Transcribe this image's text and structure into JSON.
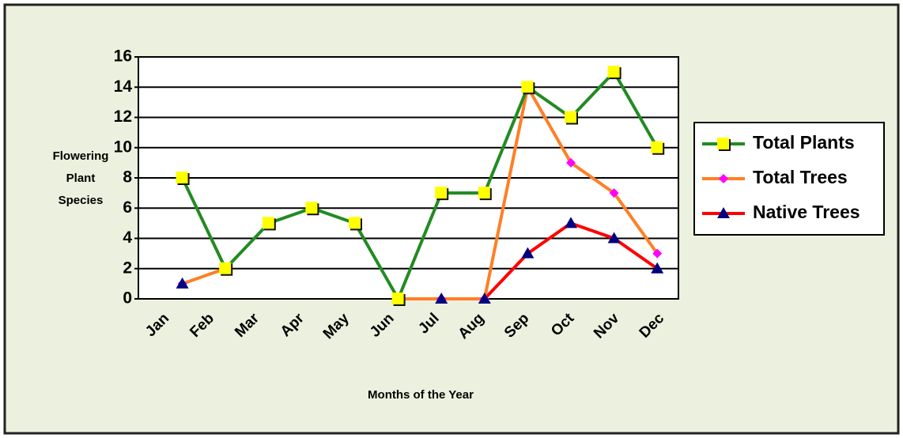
{
  "chart_data": {
    "type": "line",
    "x_label": "Months of the Year",
    "y_label": "Flowering Plant Species",
    "categories": [
      "Jan",
      "Feb",
      "Mar",
      "Apr",
      "May",
      "Jun",
      "Jul",
      "Aug",
      "Sep",
      "Oct",
      "Nov",
      "Dec"
    ],
    "series": [
      {
        "name": "Total Plants",
        "color": "#228b22",
        "marker": "square",
        "marker_color": "#ffff00",
        "values": [
          8,
          2,
          5,
          6,
          5,
          0,
          7,
          7,
          14,
          12,
          15,
          10
        ]
      },
      {
        "name": "Total Trees",
        "color": "#ff7f27",
        "marker": "diamond",
        "marker_color": "#ff00ff",
        "values": [
          1,
          2,
          null,
          null,
          null,
          0,
          0,
          0,
          14,
          9,
          7,
          3
        ]
      },
      {
        "name": "Native Trees",
        "color": "#ff0000",
        "marker": "triangle",
        "marker_color": "#000080",
        "values": [
          1,
          null,
          null,
          null,
          null,
          0,
          0,
          0,
          3,
          5,
          4,
          2
        ]
      }
    ],
    "ylim": [
      0,
      16
    ],
    "yticks": [
      0,
      2,
      4,
      6,
      8,
      10,
      12,
      14,
      16
    ],
    "grid": true,
    "legend": "right"
  }
}
